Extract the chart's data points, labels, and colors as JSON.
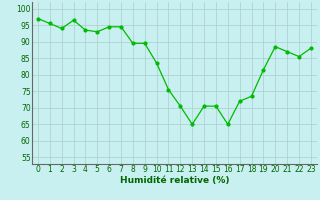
{
  "x": [
    0,
    1,
    2,
    3,
    4,
    5,
    6,
    7,
    8,
    9,
    10,
    11,
    12,
    13,
    14,
    15,
    16,
    17,
    18,
    19,
    20,
    21,
    22,
    23
  ],
  "y": [
    97,
    95.5,
    94,
    96.5,
    93.5,
    93,
    94.5,
    94.5,
    89.5,
    89.5,
    83.5,
    75.5,
    70.5,
    65,
    70.5,
    70.5,
    65,
    72,
    73.5,
    81.5,
    88.5,
    87,
    85.5,
    88
  ],
  "line_color": "#00bb00",
  "marker": "o",
  "markersize": 2.0,
  "linewidth": 0.9,
  "xlabel": "Humidité relative (%)",
  "xlabel_color": "#006600",
  "xlabel_fontsize": 6.5,
  "yticks": [
    55,
    60,
    65,
    70,
    75,
    80,
    85,
    90,
    95,
    100
  ],
  "ylim": [
    53,
    102
  ],
  "xlim": [
    -0.5,
    23.5
  ],
  "background_color": "#c8f0f0",
  "grid_color": "#aacccc",
  "tick_fontsize": 5.5,
  "tick_color": "#006600"
}
